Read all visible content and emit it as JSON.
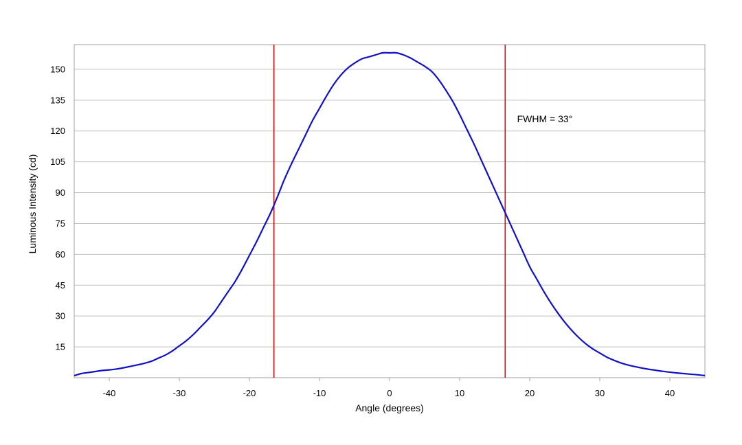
{
  "chart_data": {
    "type": "line",
    "title": "",
    "xlabel": "Angle (degrees)",
    "ylabel": "Luminous Intensity (cd)",
    "xlim": [
      -45,
      45
    ],
    "ylim": [
      0,
      162
    ],
    "x_ticks": [
      -40,
      -30,
      -20,
      -10,
      0,
      10,
      20,
      30,
      40
    ],
    "y_ticks": [
      15,
      30,
      45,
      60,
      75,
      90,
      105,
      120,
      135,
      150
    ],
    "grid": {
      "horizontal": true,
      "vertical": false
    },
    "legend": "none",
    "colors": {
      "series": "#1010c8",
      "markers": "#d01010",
      "grid": "#c0c0c0",
      "frame": "#a0a0a0"
    },
    "series": [
      {
        "x": [
          -45,
          -44,
          -43,
          -42,
          -41,
          -40,
          -39,
          -38,
          -37,
          -36,
          -35,
          -34,
          -33,
          -32,
          -31,
          -30,
          -29,
          -28,
          -27,
          -26,
          -25,
          -24,
          -23,
          -22,
          -21,
          -20,
          -19,
          -18,
          -17,
          -16,
          -15,
          -14,
          -13,
          -12,
          -11,
          -10,
          -9,
          -8,
          -7,
          -6,
          -5,
          -4,
          -3,
          -2,
          -1,
          0,
          1,
          2,
          3,
          4,
          5,
          6,
          7,
          8,
          9,
          10,
          11,
          12,
          13,
          14,
          15,
          16,
          17,
          18,
          19,
          20,
          21,
          22,
          23,
          24,
          25,
          26,
          27,
          28,
          29,
          30,
          31,
          32,
          33,
          34,
          35,
          36,
          37,
          38,
          39,
          40,
          41,
          42,
          43,
          44,
          45
        ],
        "y": [
          1,
          2,
          2.5,
          3,
          3.5,
          3.8,
          4.2,
          4.8,
          5.5,
          6.2,
          7,
          8,
          9.5,
          11,
          13,
          15.5,
          18,
          21,
          24.5,
          28,
          32,
          37,
          42,
          47,
          53,
          59.5,
          66,
          73,
          80,
          88,
          96.5,
          104,
          111,
          118,
          125,
          131,
          137,
          142.5,
          147,
          150.5,
          153,
          155,
          156,
          157,
          158,
          158,
          158,
          157,
          155.5,
          153.5,
          151.5,
          149,
          145,
          140,
          134.5,
          128,
          121,
          114,
          106.5,
          99,
          91.5,
          84,
          76.5,
          69,
          61.5,
          54,
          48,
          42,
          36.5,
          31.5,
          27,
          23,
          19.5,
          16.5,
          14,
          12,
          10,
          8.5,
          7.2,
          6.2,
          5.4,
          4.7,
          4.1,
          3.6,
          3.1,
          2.7,
          2.3,
          2,
          1.7,
          1.4,
          1
        ]
      }
    ],
    "vertical_lines": [
      -16.5,
      16.5
    ],
    "annotations": [
      {
        "text": "FWHM = 33°",
        "x": 18,
        "y": 126
      }
    ]
  }
}
